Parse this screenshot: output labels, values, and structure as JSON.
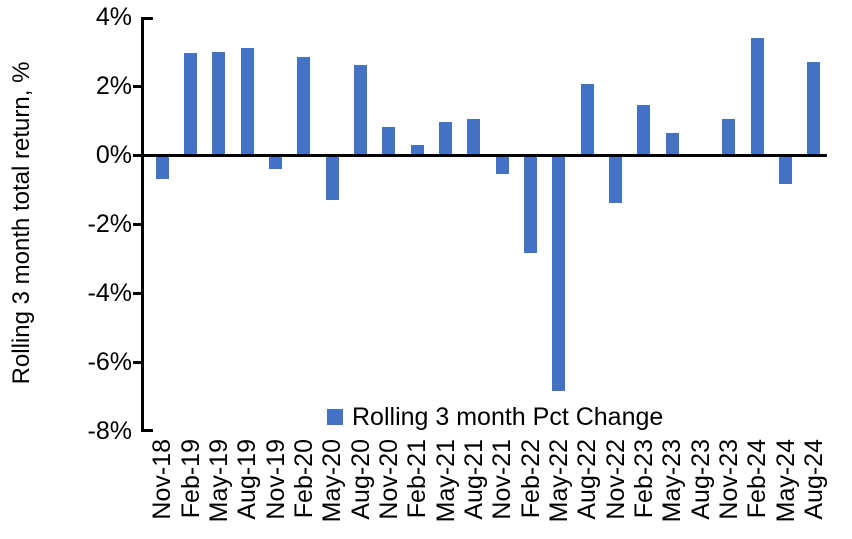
{
  "chart_data": {
    "type": "bar",
    "title": "",
    "xlabel": "",
    "ylabel": "Rolling 3 month total return, %",
    "legend_label": "Rolling 3 month Pct Change",
    "legend_position": "bottom-center",
    "grid": "off",
    "bar_color": "#4472C4",
    "axis_color": "#000000",
    "background_color": "#FFFFFF",
    "ylim": [
      -8,
      4
    ],
    "ytick_values": [
      4,
      2,
      0,
      -2,
      -4,
      -6,
      -8
    ],
    "ytick_labels": [
      "4%",
      "2%",
      "0%",
      "-2%",
      "-4%",
      "-6%",
      "-8%"
    ],
    "categories": [
      "Nov-18",
      "Feb-19",
      "May-19",
      "Aug-19",
      "Nov-19",
      "Feb-20",
      "May-20",
      "Aug-20",
      "Nov-20",
      "Feb-21",
      "May-21",
      "Aug-21",
      "Nov-21",
      "Feb-22",
      "May-22",
      "Aug-22",
      "Nov-22",
      "Feb-23",
      "May-23",
      "Aug-23",
      "Nov-23",
      "Feb-24",
      "May-24",
      "Aug-24"
    ],
    "values": [
      -0.7,
      2.95,
      3.0,
      3.1,
      -0.4,
      2.85,
      -1.3,
      2.6,
      0.8,
      0.3,
      0.95,
      1.05,
      -0.55,
      -2.85,
      -6.85,
      2.05,
      -1.4,
      1.45,
      0.65,
      0.0,
      1.05,
      3.4,
      -0.85,
      2.7
    ]
  }
}
